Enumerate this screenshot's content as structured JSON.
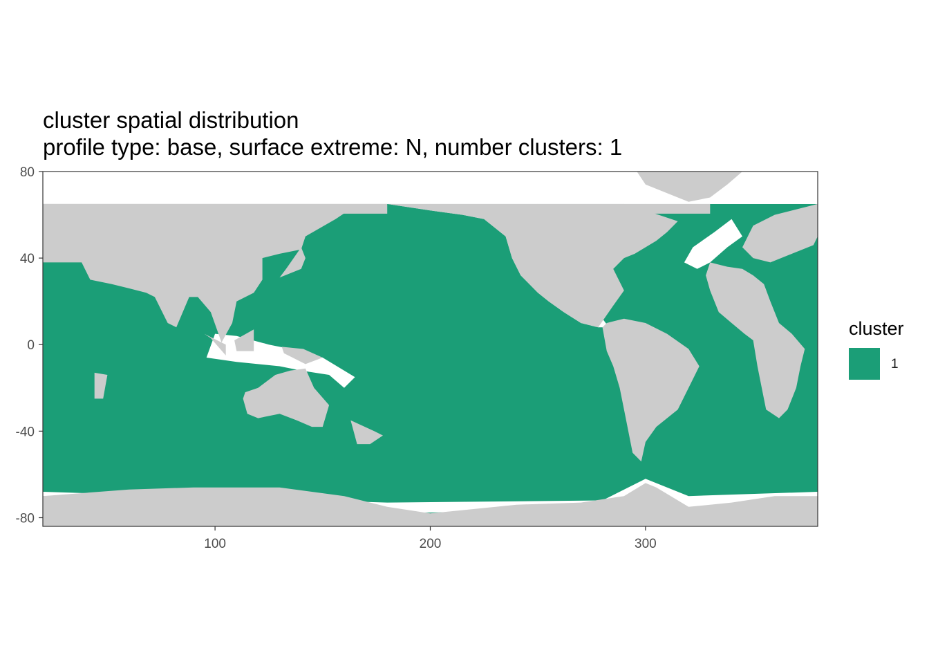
{
  "title": "cluster spatial distribution",
  "subtitle": "profile type: base, surface extreme: N, number clusters: 1",
  "legend": {
    "title": "cluster",
    "items": [
      {
        "label": "1",
        "color": "#1B9E77"
      }
    ]
  },
  "colors": {
    "land": "#CCCCCC",
    "ocean_no_data": "#FFFFFF",
    "cluster_1": "#1B9E77",
    "panel_border": "#333333",
    "gridline": "#EBEBEB"
  },
  "chart_data": {
    "type": "heatmap",
    "description_of_fill": "ocean cells colored by cluster; land gray; missing cells white",
    "x_ticks": [
      100,
      200,
      300
    ],
    "y_ticks": [
      80,
      40,
      0,
      -40,
      -80
    ],
    "x_tick_labels": [
      "100",
      "200",
      "300"
    ],
    "y_tick_labels": [
      "80",
      "40",
      "0",
      "-40",
      "-80"
    ],
    "xlim": [
      20,
      380
    ],
    "ylim": [
      -84,
      80
    ],
    "grid": true,
    "legend_position": "right",
    "series": [
      {
        "name": "1",
        "color": "#1B9E77"
      }
    ],
    "regions": {
      "land": [
        [
          [
            20,
            65
          ],
          [
            20,
            38
          ],
          [
            38,
            38
          ],
          [
            42,
            30
          ],
          [
            52,
            28
          ],
          [
            60,
            26
          ],
          [
            68,
            24
          ],
          [
            72,
            22
          ],
          [
            78,
            10
          ],
          [
            82,
            8
          ],
          [
            88,
            22
          ],
          [
            92,
            22
          ],
          [
            98,
            15
          ],
          [
            103,
            1
          ],
          [
            108,
            10
          ],
          [
            110,
            20
          ],
          [
            118,
            24
          ],
          [
            122,
            30
          ],
          [
            122,
            40
          ],
          [
            130,
            42
          ],
          [
            140,
            44
          ],
          [
            142,
            50
          ],
          [
            156,
            58
          ],
          [
            162,
            62
          ],
          [
            180,
            65
          ]
        ],
        [
          [
            180,
            65
          ],
          [
            200,
            62
          ],
          [
            215,
            60
          ],
          [
            225,
            58
          ],
          [
            235,
            50
          ],
          [
            238,
            40
          ],
          [
            242,
            32
          ],
          [
            250,
            24
          ],
          [
            255,
            20
          ],
          [
            262,
            15
          ],
          [
            270,
            10
          ],
          [
            278,
            8
          ],
          [
            285,
            18
          ],
          [
            290,
            25
          ],
          [
            285,
            35
          ],
          [
            290,
            40
          ],
          [
            295,
            42
          ],
          [
            300,
            45
          ],
          [
            305,
            48
          ],
          [
            310,
            52
          ],
          [
            315,
            57
          ],
          [
            300,
            62
          ],
          [
            290,
            65
          ]
        ],
        [
          [
            280,
            8
          ],
          [
            282,
            -3
          ],
          [
            285,
            -10
          ],
          [
            288,
            -20
          ],
          [
            290,
            -30
          ],
          [
            292,
            -40
          ],
          [
            294,
            -50
          ],
          [
            298,
            -54
          ],
          [
            300,
            -45
          ],
          [
            305,
            -38
          ],
          [
            315,
            -30
          ],
          [
            320,
            -20
          ],
          [
            325,
            -10
          ],
          [
            320,
            -2
          ],
          [
            310,
            5
          ],
          [
            300,
            10
          ],
          [
            290,
            12
          ],
          [
            282,
            10
          ]
        ],
        [
          [
            330,
            38
          ],
          [
            338,
            36
          ],
          [
            345,
            35
          ],
          [
            350,
            32
          ],
          [
            355,
            28
          ],
          [
            358,
            20
          ],
          [
            362,
            10
          ],
          [
            368,
            5
          ],
          [
            374,
            -2
          ],
          [
            372,
            -10
          ],
          [
            370,
            -20
          ],
          [
            366,
            -30
          ],
          [
            362,
            -34
          ],
          [
            356,
            -30
          ],
          [
            354,
            -20
          ],
          [
            352,
            -10
          ],
          [
            350,
            2
          ],
          [
            346,
            5
          ],
          [
            340,
            10
          ],
          [
            334,
            15
          ],
          [
            330,
            25
          ],
          [
            328,
            32
          ]
        ],
        [
          [
            114,
            -22
          ],
          [
            120,
            -20
          ],
          [
            128,
            -14
          ],
          [
            135,
            -12
          ],
          [
            142,
            -11
          ],
          [
            146,
            -20
          ],
          [
            153,
            -28
          ],
          [
            150,
            -38
          ],
          [
            145,
            -38
          ],
          [
            138,
            -35
          ],
          [
            130,
            -32
          ],
          [
            120,
            -34
          ],
          [
            115,
            -32
          ],
          [
            113,
            -25
          ]
        ],
        [
          [
            380,
            65
          ],
          [
            360,
            60
          ],
          [
            350,
            55
          ],
          [
            345,
            45
          ],
          [
            350,
            40
          ],
          [
            358,
            38
          ],
          [
            368,
            42
          ],
          [
            378,
            46
          ],
          [
            380,
            50
          ]
        ],
        [
          [
            296,
            80
          ],
          [
            300,
            74
          ],
          [
            310,
            70
          ],
          [
            320,
            66
          ],
          [
            330,
            68
          ],
          [
            338,
            74
          ],
          [
            345,
            80
          ]
        ],
        [
          [
            20,
            -70
          ],
          [
            60,
            -67
          ],
          [
            90,
            -66
          ],
          [
            130,
            -66
          ],
          [
            160,
            -70
          ],
          [
            180,
            -75
          ],
          [
            200,
            -78
          ],
          [
            240,
            -74
          ],
          [
            270,
            -73
          ],
          [
            290,
            -70
          ],
          [
            300,
            -64
          ],
          [
            305,
            -66
          ],
          [
            320,
            -75
          ],
          [
            340,
            -73
          ],
          [
            360,
            -70
          ],
          [
            380,
            -70
          ],
          [
            380,
            -84
          ],
          [
            20,
            -84
          ]
        ],
        [
          [
            163,
            -35
          ],
          [
            174,
            -40
          ],
          [
            178,
            -42
          ],
          [
            172,
            -46
          ],
          [
            166,
            -46
          ]
        ],
        [
          [
            44,
            -13
          ],
          [
            50,
            -14
          ],
          [
            48,
            -25
          ],
          [
            44,
            -25
          ]
        ],
        [
          [
            130,
            31
          ],
          [
            140,
            35
          ],
          [
            142,
            40
          ],
          [
            140,
            45
          ],
          [
            133,
            35
          ]
        ],
        [
          [
            95,
            5
          ],
          [
            105,
            0
          ],
          [
            105,
            -5
          ],
          [
            98,
            3
          ]
        ],
        [
          [
            109,
            2
          ],
          [
            118,
            7
          ],
          [
            118,
            -3
          ],
          [
            110,
            -3
          ]
        ],
        [
          [
            131,
            -1
          ],
          [
            141,
            -2
          ],
          [
            150,
            -6
          ],
          [
            142,
            -9
          ],
          [
            132,
            -4
          ]
        ]
      ],
      "no_data": [
        [
          [
            180,
            65
          ],
          [
            200,
            62
          ],
          [
            215,
            60
          ],
          [
            225,
            58
          ],
          [
            235,
            50
          ],
          [
            238,
            40
          ],
          [
            242,
            32
          ],
          [
            250,
            24
          ],
          [
            255,
            20
          ],
          [
            262,
            15
          ],
          [
            270,
            10
          ],
          [
            278,
            8
          ],
          [
            283,
            8
          ],
          [
            280,
            12
          ],
          [
            274,
            16
          ],
          [
            264,
            20
          ],
          [
            256,
            26
          ],
          [
            246,
            34
          ],
          [
            241,
            44
          ],
          [
            237,
            54
          ],
          [
            226,
            60
          ],
          [
            210,
            63
          ],
          [
            195,
            64
          ]
        ],
        [
          [
            330,
            38
          ],
          [
            324,
            35
          ],
          [
            318,
            38
          ],
          [
            322,
            45
          ],
          [
            332,
            52
          ],
          [
            340,
            58
          ],
          [
            345,
            50
          ],
          [
            338,
            45
          ]
        ],
        [
          [
            20,
            -68
          ],
          [
            180,
            -73
          ],
          [
            280,
            -72
          ],
          [
            300,
            -62
          ],
          [
            320,
            -70
          ],
          [
            380,
            -68
          ],
          [
            380,
            -73
          ],
          [
            320,
            -77
          ],
          [
            300,
            -70
          ],
          [
            280,
            -76
          ],
          [
            180,
            -78
          ],
          [
            20,
            -70
          ]
        ],
        [
          [
            96,
            -6
          ],
          [
            110,
            -8
          ],
          [
            130,
            -10
          ],
          [
            140,
            -12
          ],
          [
            153,
            -14
          ],
          [
            160,
            -20
          ],
          [
            165,
            -15
          ],
          [
            150,
            -6
          ],
          [
            140,
            -3
          ],
          [
            125,
            0
          ],
          [
            110,
            4
          ],
          [
            100,
            5
          ]
        ]
      ]
    }
  }
}
